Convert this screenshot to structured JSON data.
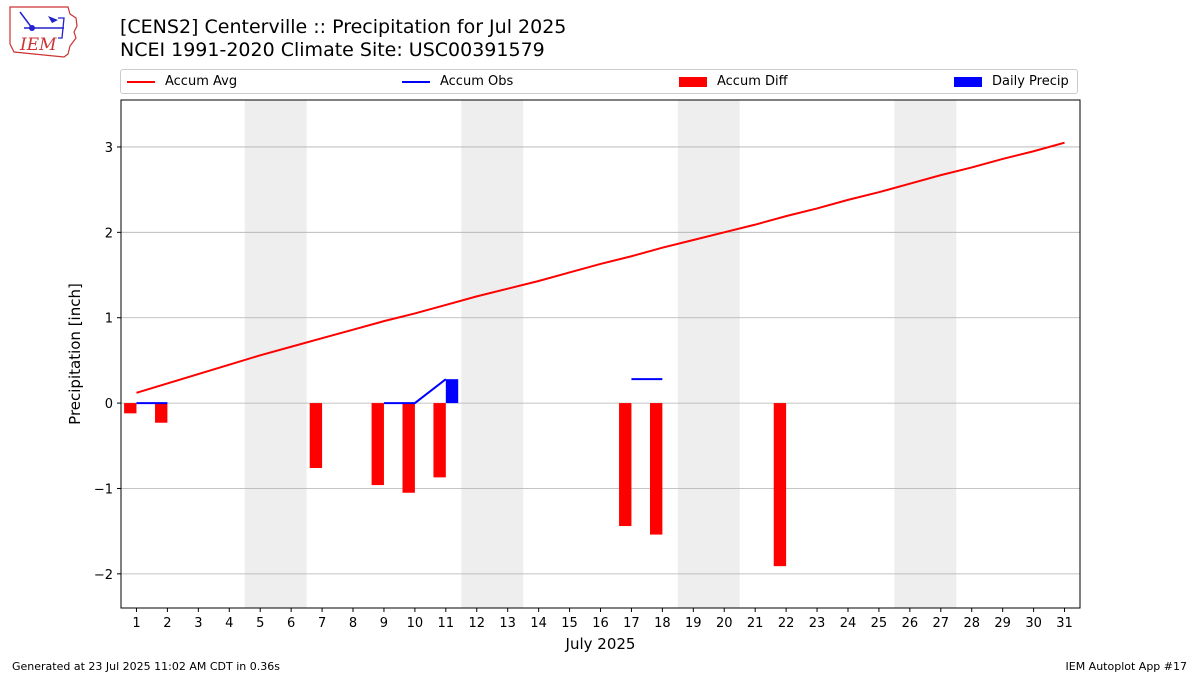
{
  "header": {
    "title_line1": "[CENS2] Centerville :: Precipitation for Jul 2025",
    "title_line2": "NCEI 1991-2020 Climate Site: USC00391579",
    "logo_text": "IEM"
  },
  "legend": {
    "accum_avg": "Accum Avg",
    "accum_obs": "Accum Obs",
    "accum_diff": "Accum Diff",
    "daily_precip": "Daily Precip"
  },
  "footer": {
    "left": "Generated at 23 Jul 2025 11:02 AM CDT in 0.36s",
    "right": "IEM Autoplot App #17"
  },
  "colors": {
    "accum_avg": "#ff0000",
    "accum_obs": "#0000ff",
    "accum_diff": "#ff0000",
    "daily_precip": "#0000ff",
    "weekend_shade": "#eeeeee",
    "grid": "#b0b0b0"
  },
  "chart_data": {
    "type": "bar",
    "xlabel": "July 2025",
    "ylabel": "Precipitation [inch]",
    "ylim": [
      -2.4,
      3.55
    ],
    "xlim": [
      0.5,
      31.5
    ],
    "x_ticks": [
      1,
      2,
      3,
      4,
      5,
      6,
      7,
      8,
      9,
      10,
      11,
      12,
      13,
      14,
      15,
      16,
      17,
      18,
      19,
      20,
      21,
      22,
      23,
      24,
      25,
      26,
      27,
      28,
      29,
      30,
      31
    ],
    "y_ticks": [
      -2,
      -1,
      0,
      1,
      2,
      3
    ],
    "y_tick_labels": [
      "−2",
      "−1",
      "0",
      "1",
      "2",
      "3"
    ],
    "grid": "horizontal",
    "legend_position": "top",
    "weekend_spans": [
      [
        4.5,
        6.5
      ],
      [
        11.5,
        13.5
      ],
      [
        18.5,
        20.5
      ],
      [
        25.5,
        27.5
      ]
    ],
    "accum_avg": {
      "x": [
        1,
        2,
        3,
        4,
        5,
        6,
        7,
        8,
        9,
        10,
        11,
        12,
        13,
        14,
        15,
        16,
        17,
        18,
        19,
        20,
        21,
        22,
        23,
        24,
        25,
        26,
        27,
        28,
        29,
        30,
        31
      ],
      "y": [
        0.12,
        0.23,
        0.34,
        0.45,
        0.56,
        0.66,
        0.76,
        0.86,
        0.96,
        1.05,
        1.15,
        1.25,
        1.34,
        1.43,
        1.53,
        1.63,
        1.72,
        1.82,
        1.91,
        2.0,
        2.09,
        2.19,
        2.28,
        2.38,
        2.47,
        2.57,
        2.67,
        2.76,
        2.86,
        2.95,
        3.05
      ]
    },
    "accum_obs": {
      "segments": [
        {
          "x": [
            1,
            2
          ],
          "y": [
            0,
            0
          ]
        },
        {
          "x": [
            9,
            10,
            11
          ],
          "y": [
            0,
            0,
            0.28
          ]
        },
        {
          "x": [
            17,
            18
          ],
          "y": [
            0.28,
            0.28
          ]
        }
      ]
    },
    "accum_diff": {
      "days": [
        1,
        2,
        7,
        9,
        10,
        11,
        17,
        18,
        22
      ],
      "values": [
        -0.12,
        -0.23,
        -0.76,
        -0.96,
        -1.05,
        -0.87,
        -1.44,
        -1.54,
        -1.91
      ]
    },
    "daily_precip": {
      "days": [
        11
      ],
      "values": [
        0.28
      ]
    }
  }
}
